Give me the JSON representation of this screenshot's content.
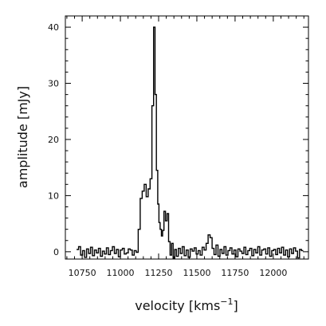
{
  "chart_data": {
    "type": "line",
    "title": "",
    "xlabel_base": "velocity  [kms",
    "xlabel_exp": "−1",
    "xlabel_close": "]",
    "ylabel": "amplitude  [mJy]",
    "xlim": [
      10640,
      12230
    ],
    "ylim": [
      -1.3,
      42
    ],
    "xticks": [
      10750,
      11000,
      11250,
      11500,
      11750,
      12000
    ],
    "xtick_labels": [
      "10750",
      "11000",
      "11250",
      "11500",
      "11750",
      "12000"
    ],
    "yticks": [
      0,
      10,
      20,
      30,
      40
    ],
    "ytick_labels": [
      "0",
      "10",
      "20",
      "30",
      "40"
    ],
    "x_minor_step": 50,
    "y_minor_step": 2,
    "grid": false,
    "legend": "none",
    "line_color": "#000000",
    "series": [
      {
        "x": [
          10720,
          10733,
          10746,
          10759,
          10772,
          10785,
          10798,
          10811,
          10824,
          10837,
          10850,
          10863,
          10876,
          10889,
          10902,
          10915,
          10928,
          10941,
          10954,
          10967,
          10980,
          10993,
          11006,
          11019,
          11032,
          11045,
          11058,
          11071,
          11084,
          11097,
          11110,
          11123,
          11136,
          11149,
          11162,
          11175,
          11188,
          11200,
          11212,
          11222,
          11231,
          11240,
          11248,
          11256,
          11264,
          11272,
          11280,
          11290,
          11300,
          11310,
          11320,
          11330,
          11340,
          11350,
          11360,
          11372,
          11385,
          11398,
          11411,
          11424,
          11437,
          11450,
          11463,
          11476,
          11489,
          11502,
          11515,
          11528,
          11541,
          11554,
          11567,
          11580,
          11593,
          11606,
          11619,
          11632,
          11645,
          11658,
          11671,
          11684,
          11697,
          11710,
          11723,
          11736,
          11749,
          11762,
          11775,
          11788,
          11801,
          11814,
          11827,
          11840,
          11853,
          11866,
          11879,
          11892,
          11905,
          11918,
          11931,
          11944,
          11957,
          11970,
          11983,
          11996,
          12009,
          12022,
          12035,
          12048,
          12061,
          12074,
          12087,
          12100,
          12113,
          12126,
          12139,
          12152,
          12165,
          12178,
          12190
        ],
        "y": [
          0.4,
          0.9,
          -0.6,
          0.2,
          -1.0,
          0.5,
          -0.3,
          0.8,
          -0.7,
          0.3,
          -0.2,
          0.6,
          -0.8,
          0.1,
          -0.4,
          0.7,
          -0.5,
          0.2,
          0.9,
          -0.3,
          0.4,
          -0.9,
          0.3,
          0.6,
          -0.4,
          -0.2,
          0.5,
          0.3,
          -0.6,
          0.2,
          -0.1,
          4.0,
          9.5,
          10.8,
          12.0,
          9.8,
          11.2,
          13.0,
          26.0,
          40.0,
          28.0,
          14.5,
          8.5,
          5.2,
          4.0,
          2.8,
          3.8,
          7.2,
          5.5,
          6.8,
          1.8,
          -0.6,
          1.5,
          -1.2,
          0.4,
          -0.8,
          0.6,
          -0.3,
          0.9,
          -0.7,
          0.3,
          -1.0,
          0.5,
          0.1,
          0.7,
          -0.4,
          0.2,
          -0.6,
          0.8,
          0.3,
          1.5,
          3.0,
          2.5,
          0.6,
          -0.5,
          1.2,
          -0.8,
          0.4,
          -0.3,
          0.9,
          -0.6,
          0.2,
          0.7,
          -0.4,
          0.3,
          -0.9,
          0.5,
          0.1,
          -0.3,
          0.8,
          -0.5,
          0.2,
          0.6,
          -0.7,
          0.4,
          -0.2,
          0.9,
          -0.6,
          0.3,
          0.5,
          -0.4,
          0.7,
          -0.8,
          0.2,
          0.4,
          -0.5,
          0.6,
          -0.2,
          0.8,
          -0.6,
          0.3,
          -0.9,
          0.5,
          -0.3,
          0.7,
          0.1,
          -1.1,
          0.4,
          0.2
        ]
      }
    ]
  }
}
